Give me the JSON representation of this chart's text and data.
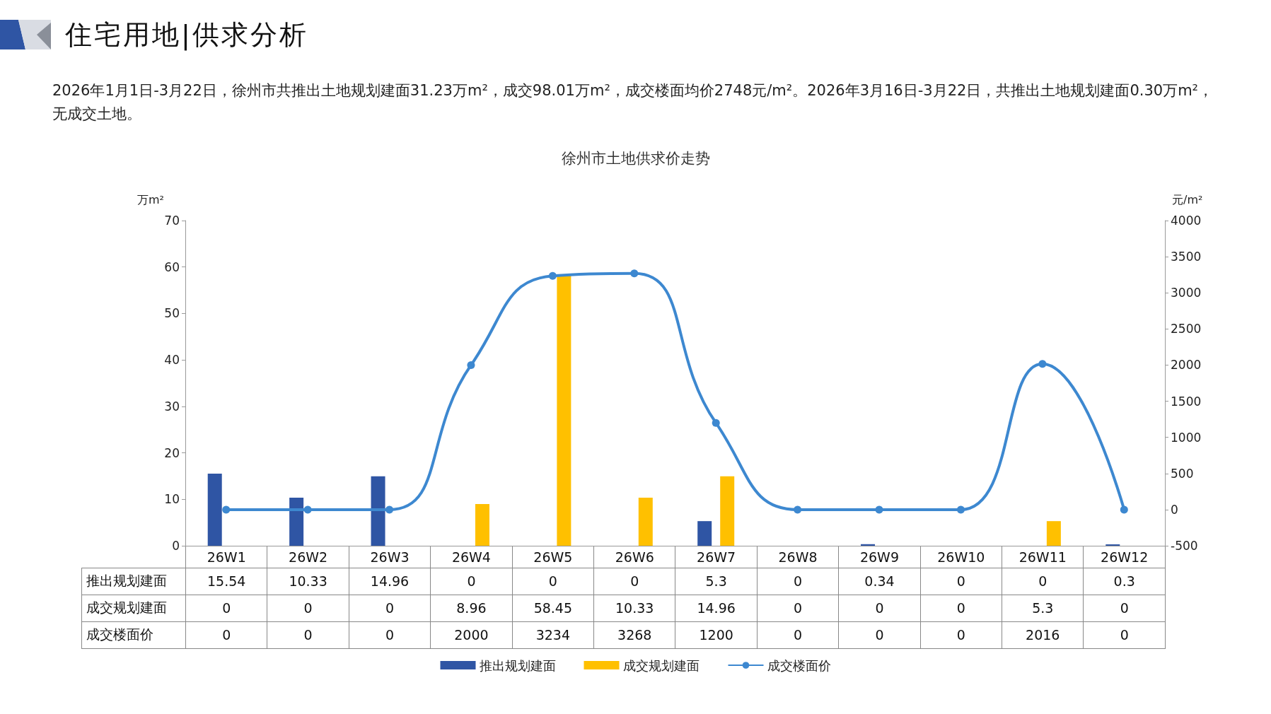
{
  "chart_data": {
    "type": "bar",
    "title": "徐州市土地供求价走势",
    "annotations": [
      "住宅用地|供求分析",
      "2026年1月1日-3月22日，徐州市共推出土地规划建面31.23万m²，成交98.01万m²，成交楼面均价2748元/m²。2026年3月16日-3月22日，共推出土地规划建面0.30万m²，无成交土地。"
    ],
    "ylabel": "万m²",
    "y2label": "元/m²",
    "categories": [
      "26W1",
      "26W2",
      "26W3",
      "26W4",
      "26W5",
      "26W6",
      "26W7",
      "26W8",
      "26W9",
      "26W10",
      "26W11",
      "26W12"
    ],
    "series": [
      {
        "name": "推出规划建面",
        "color": "#2f55a4",
        "values": [
          15.54,
          10.33,
          14.96,
          0,
          0,
          0,
          5.3,
          0,
          0.34,
          0,
          0,
          0.3
        ]
      },
      {
        "name": "成交规划建面",
        "color": "#ffc000",
        "values": [
          0,
          0,
          0,
          8.96,
          58.45,
          10.33,
          14.96,
          0,
          0,
          0,
          5.3,
          0
        ]
      },
      {
        "name": "成交楼面价",
        "type": "line",
        "axis": "y2",
        "color": "#3d88d0",
        "marker": "circle",
        "values": [
          0,
          0,
          0,
          2000,
          3234,
          3268,
          1200,
          0,
          0,
          0,
          2016,
          0
        ]
      }
    ],
    "ylim": [
      0,
      70
    ],
    "yticks": [
      0,
      10,
      20,
      30,
      40,
      50,
      60,
      70
    ],
    "y2lim": [
      -500,
      4000
    ],
    "y2ticks": [
      -500,
      0,
      500,
      1000,
      1500,
      2000,
      2500,
      3000,
      3500,
      4000
    ],
    "grid": false,
    "legend": "bottom",
    "data_labels": true
  }
}
